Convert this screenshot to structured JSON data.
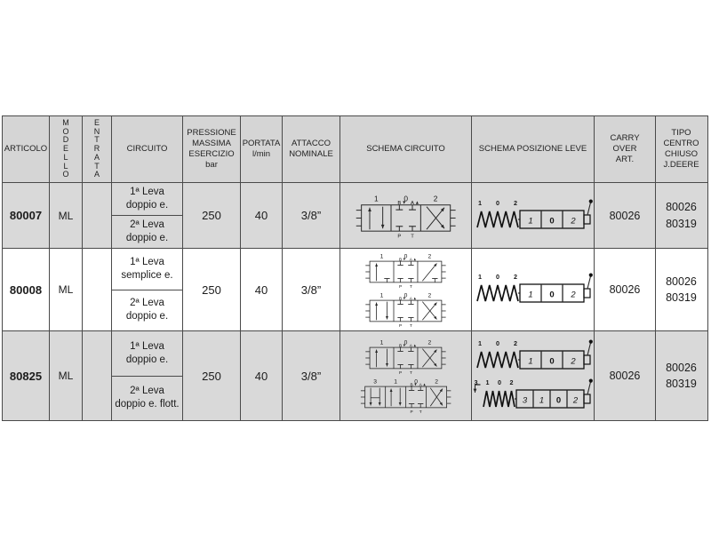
{
  "colors": {
    "header_bg": "#d5d5d5",
    "row_shaded_bg": "#d9d9d9",
    "border": "#4a4a4a",
    "text": "#1c1c1c"
  },
  "table": {
    "headers": {
      "articolo": "ARTICOLO",
      "modello": "MODELLO",
      "entrata": "ENTRATA",
      "circuito": "CIRCUITO",
      "pressione": "PRESSIONE\nMASSIMA\nESERCIZIO",
      "pressione_unit": "bar",
      "portata": "PORTATA",
      "portata_unit": "l/min",
      "attacco": "ATTACCO\nNOMINALE",
      "schema_circuito": "SCHEMA CIRCUITO",
      "schema_posizione_leve": "SCHEMA POSIZIONE LEVE",
      "carry_over": "CARRY\nOVER\nART.",
      "tipo_centro": "TIPO\nCENTRO\nCHIUSO\nJ.DEERE"
    },
    "valve_ports": {
      "top": [
        "B",
        "A"
      ],
      "bottom": [
        "P",
        "T"
      ]
    },
    "rows": [
      {
        "articolo": "80007",
        "modello": "ML",
        "entrata": "",
        "circuiti": [
          "1ª Leva\ndoppio e.",
          "2ª Leva\ndoppio e."
        ],
        "pressione": "250",
        "portata": "40",
        "attacco": "3/8”",
        "schemi_circuito": [
          {
            "type": "double",
            "positions": [
              "1",
              "0",
              "2"
            ]
          }
        ],
        "schemi_leve": [
          {
            "positions": [
              "1",
              "0",
              "2"
            ],
            "detent": false
          }
        ],
        "carry_over": "80026",
        "tipo_centro": "80026\n80319"
      },
      {
        "articolo": "80008",
        "modello": "ML",
        "entrata": "",
        "circuiti": [
          "1ª Leva\nsemplice e.",
          "2ª Leva\ndoppio e."
        ],
        "pressione": "250",
        "portata": "40",
        "attacco": "3/8”",
        "schemi_circuito": [
          {
            "type": "single",
            "positions": [
              "1",
              "0",
              "2"
            ]
          },
          {
            "type": "double",
            "positions": [
              "1",
              "0",
              "2"
            ]
          }
        ],
        "schemi_leve": [
          {
            "positions": [
              "1",
              "0",
              "2"
            ],
            "detent": false
          }
        ],
        "carry_over": "80026",
        "tipo_centro": "80026\n80319"
      },
      {
        "articolo": "80825",
        "modello": "ML",
        "entrata": "",
        "circuiti": [
          "1ª Leva\ndoppio e.",
          "2ª Leva\ndoppio e. flott."
        ],
        "pressione": "250",
        "portata": "40",
        "attacco": "3/8”",
        "schemi_circuito": [
          {
            "type": "double",
            "positions": [
              "1",
              "0",
              "2"
            ]
          },
          {
            "type": "float",
            "positions": [
              "3",
              "1",
              "0",
              "2"
            ]
          }
        ],
        "schemi_leve": [
          {
            "positions": [
              "1",
              "0",
              "2"
            ],
            "detent": false
          },
          {
            "positions": [
              "3",
              "1",
              "0",
              "2"
            ],
            "detent": true
          }
        ],
        "carry_over": "80026",
        "tipo_centro": "80026\n80319"
      }
    ]
  }
}
